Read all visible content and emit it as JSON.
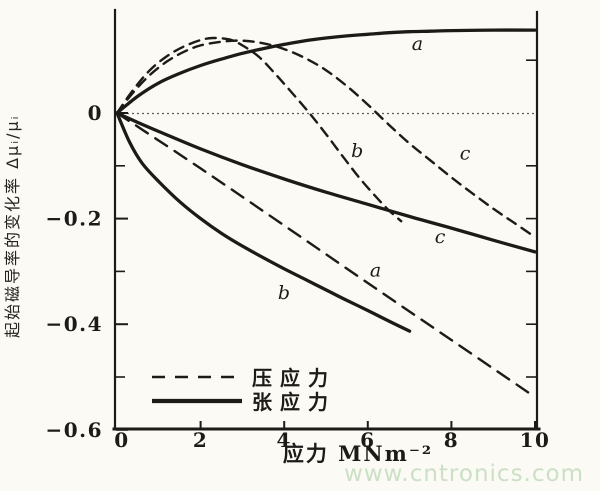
{
  "figure": {
    "watermark": "www.cntronics.com"
  },
  "colors": {
    "ink": "#1d1b18",
    "paper": "#fbfaf5",
    "watermark_green": "#cbe0c4"
  },
  "chart_data": {
    "type": "line",
    "title": "",
    "xlabel": "应力 MNm⁻²",
    "ylabel": "起始磁导率的变化率 Δμᵢ/μᵢ",
    "xlim": [
      0,
      10
    ],
    "ylim": [
      -0.6,
      0.2
    ],
    "grid": false,
    "zero_line": true,
    "legend_position": "lower-left-inside",
    "x_ticks": {
      "values": [
        0,
        2,
        4,
        6,
        8,
        10
      ],
      "labels": [
        "0",
        "2",
        "4",
        "6",
        "8",
        "10"
      ]
    },
    "y_ticks": {
      "values": [
        0,
        -0.2,
        -0.4,
        -0.6
      ],
      "labels": [
        "0",
        "−0.2",
        "−0.4",
        "−0.6"
      ]
    },
    "y_minor_ticks": [
      -0.1,
      -0.3,
      -0.5
    ],
    "right_ticks": [
      0.1,
      -0.1,
      -0.2,
      -0.3,
      -0.4,
      -0.5
    ],
    "legend": [
      {
        "label": "压应力",
        "style": "dashed"
      },
      {
        "label": "张应力",
        "style": "solid"
      }
    ],
    "series": [
      {
        "id": "compressive-b",
        "name": "压应力 b",
        "style": "dashed",
        "dash": [
          10,
          7
        ],
        "label": "b",
        "label_at": [
          5.6,
          -0.083
        ],
        "points": [
          [
            0,
            0
          ],
          [
            0.4,
            0.045
          ],
          [
            0.8,
            0.082
          ],
          [
            1.2,
            0.108
          ],
          [
            1.6,
            0.126
          ],
          [
            2,
            0.138
          ],
          [
            2.3,
            0.142
          ],
          [
            2.7,
            0.139
          ],
          [
            3,
            0.128
          ],
          [
            3.4,
            0.106
          ],
          [
            3.8,
            0.073
          ],
          [
            4.2,
            0.037
          ],
          [
            4.6,
            0
          ],
          [
            5,
            -0.04
          ],
          [
            5.4,
            -0.082
          ],
          [
            5.8,
            -0.123
          ],
          [
            6.2,
            -0.159
          ],
          [
            6.5,
            -0.184
          ],
          [
            6.8,
            -0.205
          ]
        ]
      },
      {
        "id": "compressive-c",
        "name": "压应力 c",
        "style": "dashed",
        "dash": [
          10,
          7
        ],
        "label": "c",
        "label_at": [
          8.2,
          -0.088
        ],
        "points": [
          [
            0,
            0
          ],
          [
            0.4,
            0.04
          ],
          [
            0.8,
            0.073
          ],
          [
            1.2,
            0.098
          ],
          [
            1.6,
            0.116
          ],
          [
            2,
            0.128
          ],
          [
            2.5,
            0.135
          ],
          [
            3,
            0.137
          ],
          [
            3.5,
            0.132
          ],
          [
            4,
            0.121
          ],
          [
            4.5,
            0.104
          ],
          [
            5,
            0.081
          ],
          [
            5.5,
            0.051
          ],
          [
            6,
            0.016
          ],
          [
            6.5,
            -0.022
          ],
          [
            7,
            -0.058
          ],
          [
            7.5,
            -0.09
          ],
          [
            8,
            -0.122
          ],
          [
            8.5,
            -0.152
          ],
          [
            9,
            -0.181
          ],
          [
            9.5,
            -0.208
          ],
          [
            10,
            -0.235
          ]
        ]
      },
      {
        "id": "compressive-a",
        "name": "压应力 a",
        "style": "dashed",
        "dash": [
          14,
          9
        ],
        "label": "a",
        "label_at": [
          6.05,
          -0.31
        ],
        "points": [
          [
            0,
            0
          ],
          [
            2,
            -0.105
          ],
          [
            4,
            -0.213
          ],
          [
            6,
            -0.322
          ],
          [
            8,
            -0.43
          ],
          [
            10,
            -0.538
          ]
        ]
      },
      {
        "id": "tensile-a",
        "name": "张应力 a",
        "style": "solid",
        "label": "a",
        "label_at": [
          7.05,
          0.119
        ],
        "points": [
          [
            0,
            0
          ],
          [
            0.5,
            0.032
          ],
          [
            1,
            0.057
          ],
          [
            1.5,
            0.075
          ],
          [
            2,
            0.09
          ],
          [
            2.5,
            0.102
          ],
          [
            3,
            0.113
          ],
          [
            3.5,
            0.122
          ],
          [
            4,
            0.13
          ],
          [
            4.5,
            0.137
          ],
          [
            5,
            0.142
          ],
          [
            5.5,
            0.146
          ],
          [
            6,
            0.149
          ],
          [
            6.5,
            0.152
          ],
          [
            7,
            0.154
          ],
          [
            7.5,
            0.155
          ],
          [
            8,
            0.156
          ],
          [
            9,
            0.157
          ],
          [
            10,
            0.157
          ]
        ]
      },
      {
        "id": "tensile-b",
        "name": "张应力 b",
        "style": "solid",
        "label": "b",
        "label_at": [
          3.85,
          -0.352
        ],
        "points": [
          [
            0,
            0
          ],
          [
            0.3,
            -0.055
          ],
          [
            0.6,
            -0.095
          ],
          [
            1,
            -0.13
          ],
          [
            1.5,
            -0.168
          ],
          [
            2,
            -0.2
          ],
          [
            2.5,
            -0.228
          ],
          [
            3,
            -0.252
          ],
          [
            3.5,
            -0.274
          ],
          [
            4,
            -0.295
          ],
          [
            4.5,
            -0.315
          ],
          [
            5,
            -0.335
          ],
          [
            5.5,
            -0.355
          ],
          [
            6,
            -0.374
          ],
          [
            6.5,
            -0.394
          ],
          [
            7,
            -0.413
          ]
        ]
      },
      {
        "id": "tensile-c",
        "name": "张应力 c",
        "style": "solid",
        "label": "c",
        "label_at": [
          7.6,
          -0.246
        ],
        "points": [
          [
            0,
            0
          ],
          [
            0.5,
            -0.018
          ],
          [
            1,
            -0.035
          ],
          [
            2,
            -0.068
          ],
          [
            3,
            -0.098
          ],
          [
            4,
            -0.125
          ],
          [
            5,
            -0.15
          ],
          [
            6,
            -0.173
          ],
          [
            7,
            -0.196
          ],
          [
            8,
            -0.218
          ],
          [
            9,
            -0.241
          ],
          [
            10,
            -0.263
          ]
        ]
      }
    ]
  }
}
